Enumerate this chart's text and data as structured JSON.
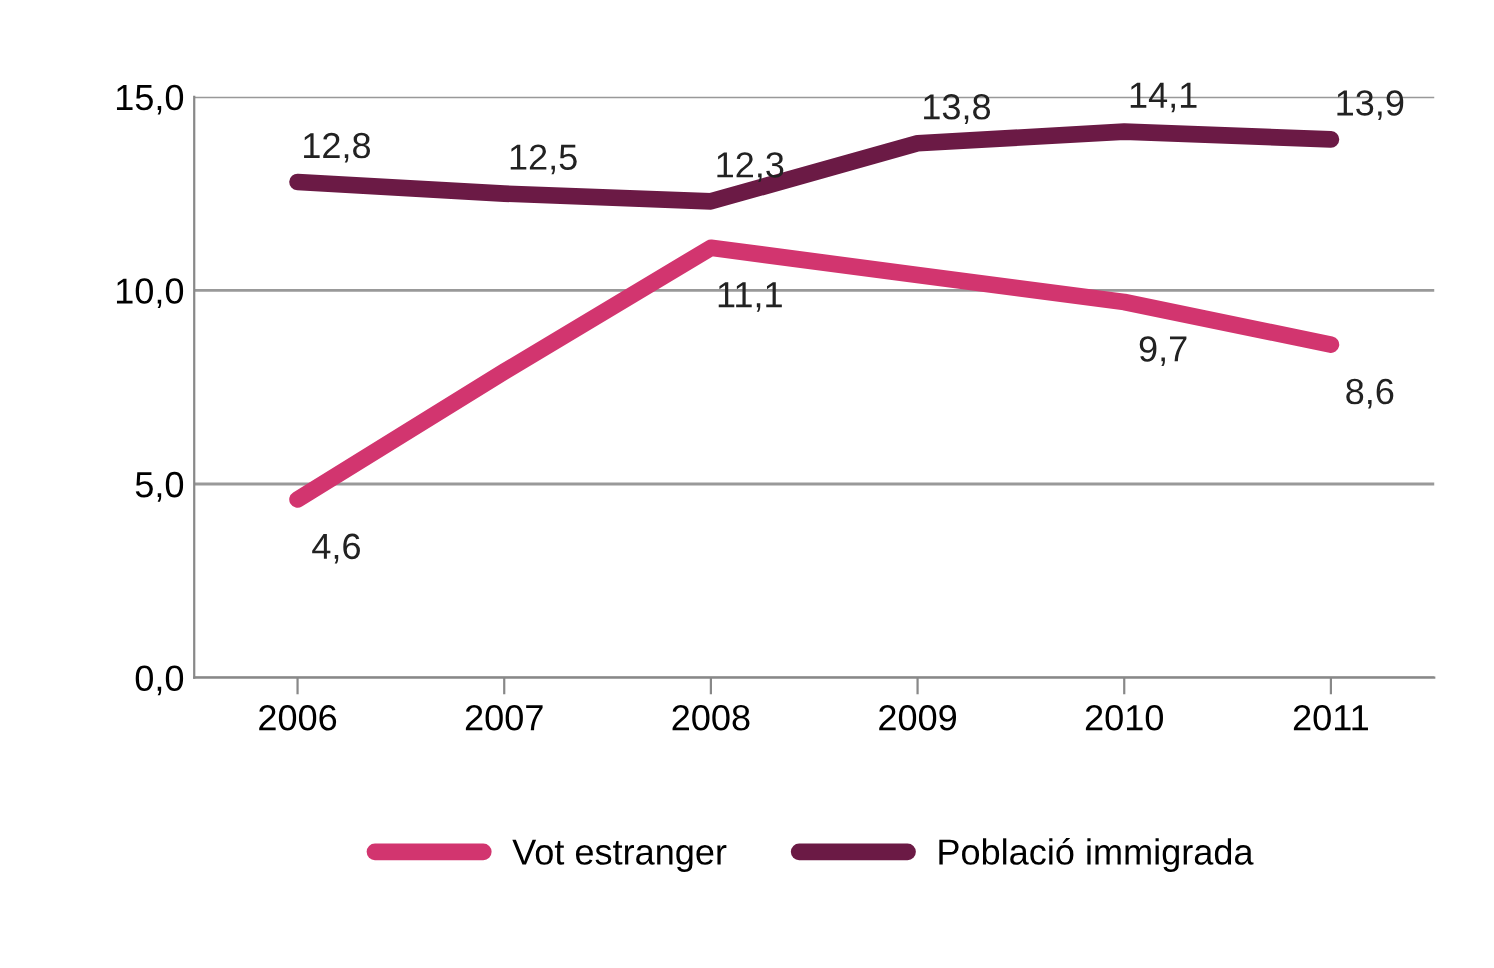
{
  "chart_data": {
    "type": "line",
    "categories": [
      "2006",
      "2007",
      "2008",
      "2009",
      "2010",
      "2011"
    ],
    "series": [
      {
        "name": "Vot estranger",
        "color": "#d2356f",
        "values": [
          4.6,
          7.9,
          11.1,
          10.4,
          9.7,
          8.6
        ],
        "value_labels": [
          "4,6",
          null,
          "11,1",
          null,
          "9,7",
          "8,6"
        ]
      },
      {
        "name": "Població immigrada",
        "color": "#6b1a45",
        "values": [
          12.8,
          12.5,
          12.3,
          13.8,
          14.1,
          13.9
        ],
        "value_labels": [
          "12,8",
          "12,5",
          "12,3",
          "13,8",
          "14,1",
          "13,9"
        ]
      }
    ],
    "ylim": [
      0,
      15
    ],
    "yticks": [
      {
        "value": 0,
        "label": "0,0"
      },
      {
        "value": 5,
        "label": "5,0"
      },
      {
        "value": 10,
        "label": "10,0"
      },
      {
        "value": 15,
        "label": "15,0"
      }
    ],
    "grid": "y",
    "legend": "bottom",
    "marker": "none",
    "line_style": "solid"
  }
}
